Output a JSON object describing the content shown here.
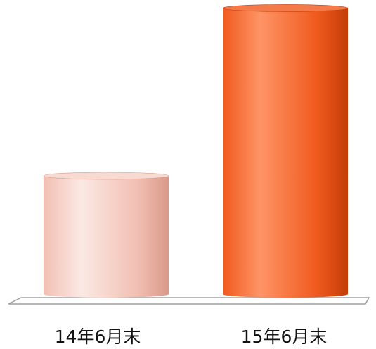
{
  "chart_data": {
    "type": "bar",
    "style": "3d-cylinder",
    "categories": [
      "14年6月末",
      "15年6月末"
    ],
    "series": [
      {
        "values": [
          100,
          242
        ]
      }
    ],
    "ylim": [
      0,
      250
    ],
    "grid": false,
    "legend": "none",
    "bar_colors": [
      {
        "light": "#fbe9e4",
        "mid": "#f2bfb2",
        "dark": "#d9998a",
        "top": "#f7dbd3"
      },
      {
        "light": "#ff9466",
        "mid": "#f05a1e",
        "dark": "#c43d08",
        "top": "#f47a4a"
      }
    ],
    "floor_color": "#a0a0a0"
  }
}
